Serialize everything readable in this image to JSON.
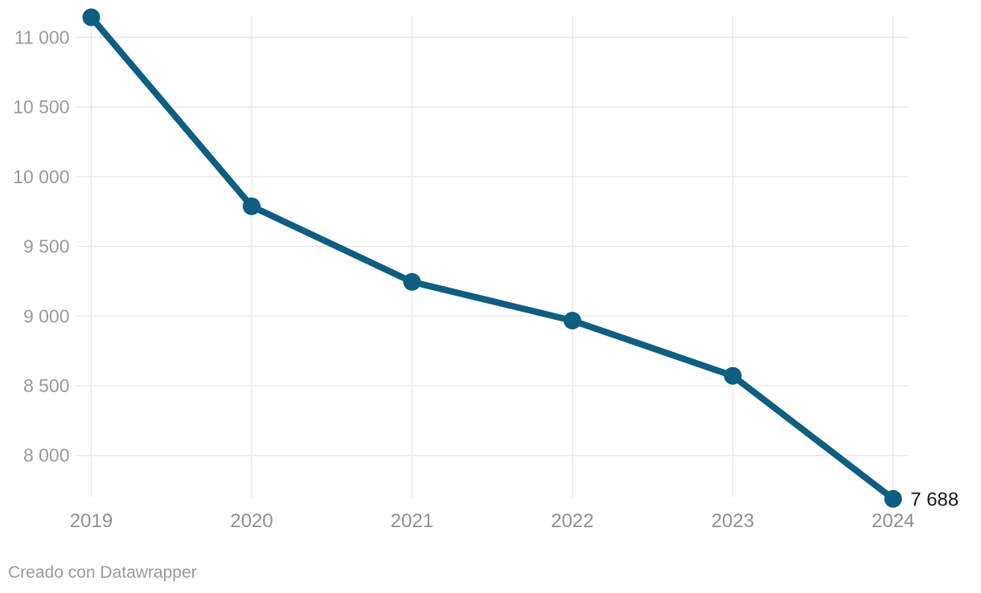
{
  "chart_data": {
    "type": "line",
    "x": [
      "2019",
      "2020",
      "2021",
      "2022",
      "2023",
      "2024"
    ],
    "values": [
      11144,
      9788,
      9245,
      8967,
      8571,
      7688
    ],
    "title": "",
    "xlabel": "",
    "ylabel": "",
    "grid": true,
    "legend": "none",
    "ylim": [
      7650,
      11150
    ],
    "y_axis": {
      "ticks": [
        {
          "value": 8000,
          "label": "8 000"
        },
        {
          "value": 8500,
          "label": "8 500"
        },
        {
          "value": 9000,
          "label": "9 000"
        },
        {
          "value": 9500,
          "label": "9 500"
        },
        {
          "value": 10000,
          "label": "10 000"
        },
        {
          "value": 10500,
          "label": "10 500"
        },
        {
          "value": 11000,
          "label": "11 000"
        }
      ]
    },
    "x_axis": {
      "tick_labels": [
        "2019",
        "2020",
        "2021",
        "2022",
        "2023",
        "2024"
      ]
    },
    "end_value_label": "7 688"
  },
  "footer": {
    "credit": "Creado con Datawrapper"
  },
  "colors": {
    "line": "#0d5e80",
    "point": "#0d5e80",
    "grid": "#e8e8e8",
    "y_label": "#9a9a9a",
    "x_label": "#8f8f8f",
    "end_label": "#1a1a1a",
    "footer": "#9a9a9a",
    "background": "#ffffff"
  }
}
